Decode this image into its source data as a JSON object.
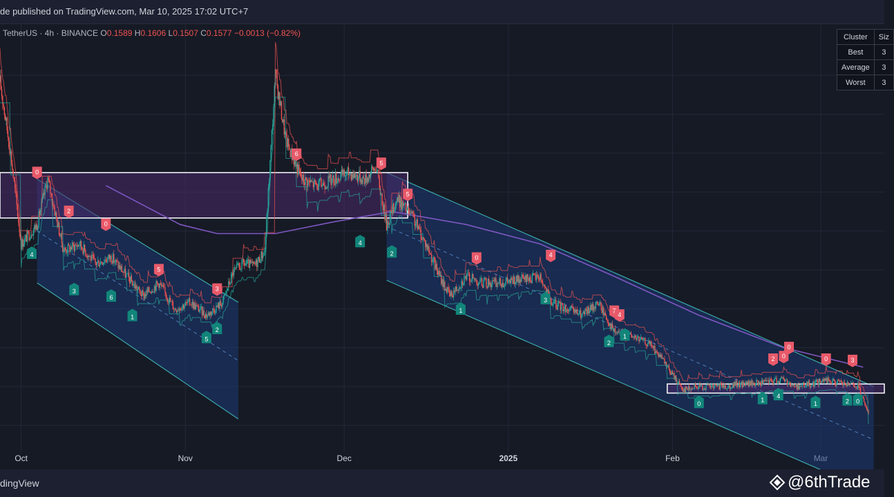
{
  "header": {
    "published_text": "de published on TradingView.com, Mar 10, 2025 17:02 UTC+7"
  },
  "legend": {
    "symbol": "TetherUS · 4h · BINANCE",
    "o_label": "O",
    "o_value": "0.1589",
    "h_label": "H",
    "h_value": "0.1606",
    "l_label": "L",
    "l_value": "0.1507",
    "c_label": "C",
    "c_value": "0.1577",
    "change": "−0.0013 (−0.82%)"
  },
  "cluster_table": {
    "headers": [
      "Cluster",
      "Siz"
    ],
    "rows": [
      {
        "name": "Best",
        "value": "3"
      },
      {
        "name": "Average",
        "value": "3"
      },
      {
        "name": "Worst",
        "value": "3"
      }
    ]
  },
  "footer": {
    "brand": "dingView",
    "watermark": "@6thTrade",
    "watermark_icon": "diamond-icon"
  },
  "colors": {
    "background": "#161a25",
    "grid": "#232838",
    "bull": "#26a69a",
    "bear": "#ef5350",
    "channel": "#1e3a75",
    "ma": "#7e57c2",
    "zone": "#4a2a6a",
    "bull_label": "#12857a",
    "bear_label": "#e85a6a"
  },
  "chart_data": {
    "type": "candlestick",
    "x_tick_labels": [
      "Oct",
      "Nov",
      "Dec",
      "2025",
      "Feb",
      "Mar"
    ],
    "x_tick_dates": [
      "2024-10-01",
      "2024-11-01",
      "2024-12-01",
      "2025-01-01",
      "2025-02-01",
      "2025-03-01"
    ],
    "x_range": [
      "2024-09-27",
      "2025-03-13"
    ],
    "y_range": [
      0.13,
      0.46
    ],
    "price_path": [
      [
        "2024-09-27",
        0.415
      ],
      [
        "2024-09-29",
        0.36
      ],
      [
        "2024-10-01",
        0.29
      ],
      [
        "2024-10-04",
        0.305
      ],
      [
        "2024-10-06",
        0.34
      ],
      [
        "2024-10-09",
        0.285
      ],
      [
        "2024-10-12",
        0.29
      ],
      [
        "2024-10-15",
        0.275
      ],
      [
        "2024-10-18",
        0.28
      ],
      [
        "2024-10-21",
        0.265
      ],
      [
        "2024-10-24",
        0.25
      ],
      [
        "2024-10-27",
        0.26
      ],
      [
        "2024-10-30",
        0.24
      ],
      [
        "2024-11-02",
        0.245
      ],
      [
        "2024-11-05",
        0.235
      ],
      [
        "2024-11-08",
        0.245
      ],
      [
        "2024-11-10",
        0.268
      ],
      [
        "2024-11-12",
        0.275
      ],
      [
        "2024-11-14",
        0.273
      ],
      [
        "2024-11-16",
        0.285
      ],
      [
        "2024-11-18",
        0.42
      ],
      [
        "2024-11-20",
        0.37
      ],
      [
        "2024-11-23",
        0.34
      ],
      [
        "2024-11-26",
        0.335
      ],
      [
        "2024-11-29",
        0.34
      ],
      [
        "2024-12-02",
        0.345
      ],
      [
        "2024-12-05",
        0.34
      ],
      [
        "2024-12-07",
        0.35
      ],
      [
        "2024-12-09",
        0.305
      ],
      [
        "2024-12-11",
        0.325
      ],
      [
        "2024-12-14",
        0.31
      ],
      [
        "2024-12-17",
        0.285
      ],
      [
        "2024-12-19",
        0.265
      ],
      [
        "2024-12-21",
        0.25
      ],
      [
        "2024-12-24",
        0.265
      ],
      [
        "2024-12-27",
        0.26
      ],
      [
        "2024-12-30",
        0.26
      ],
      [
        "2025-01-03",
        0.262
      ],
      [
        "2025-01-07",
        0.265
      ],
      [
        "2025-01-09",
        0.245
      ],
      [
        "2025-01-12",
        0.24
      ],
      [
        "2025-01-15",
        0.235
      ],
      [
        "2025-01-18",
        0.245
      ],
      [
        "2025-01-21",
        0.222
      ],
      [
        "2025-01-25",
        0.218
      ],
      [
        "2025-01-28",
        0.212
      ],
      [
        "2025-01-31",
        0.195
      ],
      [
        "2025-02-03",
        0.178
      ],
      [
        "2025-02-06",
        0.18
      ],
      [
        "2025-02-10",
        0.18
      ],
      [
        "2025-02-14",
        0.182
      ],
      [
        "2025-02-18",
        0.183
      ],
      [
        "2025-02-22",
        0.186
      ],
      [
        "2025-02-24",
        0.18
      ],
      [
        "2025-02-27",
        0.182
      ],
      [
        "2025-03-02",
        0.185
      ],
      [
        "2025-03-05",
        0.182
      ],
      [
        "2025-03-08",
        0.18
      ],
      [
        "2025-03-10",
        0.158
      ]
    ],
    "moving_average": [
      [
        "2024-10-17",
        0.335
      ],
      [
        "2024-10-31",
        0.305
      ],
      [
        "2024-11-07",
        0.298
      ],
      [
        "2024-11-18",
        0.298
      ],
      [
        "2024-11-29",
        0.307
      ],
      [
        "2024-12-10",
        0.315
      ],
      [
        "2024-12-24",
        0.305
      ],
      [
        "2025-01-07",
        0.29
      ],
      [
        "2025-01-21",
        0.265
      ],
      [
        "2025-02-06",
        0.235
      ],
      [
        "2025-02-22",
        0.21
      ],
      [
        "2025-03-09",
        0.195
      ]
    ],
    "channels": [
      {
        "upper_start": [
          "2024-10-04",
          0.34
        ],
        "upper_end": [
          "2024-11-11",
          0.245
        ],
        "lower_start": [
          "2024-10-04",
          0.26
        ],
        "lower_end": [
          "2024-11-11",
          0.155
        ]
      },
      {
        "upper_start": [
          "2024-12-09",
          0.345
        ],
        "upper_end": [
          "2025-03-11",
          0.18
        ],
        "lower_start": [
          "2024-12-09",
          0.262
        ],
        "lower_end": [
          "2025-03-11",
          0.098
        ]
      }
    ],
    "zones": [
      {
        "from": "2024-09-27",
        "to": "2024-12-13",
        "top": 0.345,
        "bottom": 0.31
      },
      {
        "from": "2025-01-31",
        "to": "2025-03-13",
        "top": 0.182,
        "bottom": 0.175
      }
    ],
    "signals": [
      {
        "date": "2024-10-04",
        "price": 0.34,
        "label": "0",
        "type": "sell"
      },
      {
        "date": "2024-10-10",
        "price": 0.31,
        "label": "2",
        "type": "sell"
      },
      {
        "date": "2024-10-17",
        "price": 0.3,
        "label": "0",
        "type": "sell"
      },
      {
        "date": "2024-10-27",
        "price": 0.265,
        "label": "5",
        "type": "sell"
      },
      {
        "date": "2024-11-07",
        "price": 0.25,
        "label": "3",
        "type": "sell"
      },
      {
        "date": "2024-11-22",
        "price": 0.354,
        "label": "6",
        "type": "sell"
      },
      {
        "date": "2024-12-08",
        "price": 0.347,
        "label": "5",
        "type": "sell"
      },
      {
        "date": "2024-12-13",
        "price": 0.323,
        "label": "5",
        "type": "sell"
      },
      {
        "date": "2024-12-26",
        "price": 0.274,
        "label": "0",
        "type": "sell"
      },
      {
        "date": "2025-01-09",
        "price": 0.276,
        "label": "4",
        "type": "sell"
      },
      {
        "date": "2025-01-21",
        "price": 0.233,
        "label": "7",
        "type": "sell"
      },
      {
        "date": "2025-01-22",
        "price": 0.23,
        "label": "4",
        "type": "sell"
      },
      {
        "date": "2025-02-20",
        "price": 0.196,
        "label": "2",
        "type": "sell"
      },
      {
        "date": "2025-02-22",
        "price": 0.198,
        "label": "0",
        "type": "sell"
      },
      {
        "date": "2025-02-23",
        "price": 0.205,
        "label": "0",
        "type": "sell"
      },
      {
        "date": "2025-03-02",
        "price": 0.196,
        "label": "0",
        "type": "sell"
      },
      {
        "date": "2025-03-07",
        "price": 0.195,
        "label": "3",
        "type": "sell"
      },
      {
        "date": "2024-10-03",
        "price": 0.288,
        "label": "4",
        "type": "buy"
      },
      {
        "date": "2024-10-11",
        "price": 0.26,
        "label": "3",
        "type": "buy"
      },
      {
        "date": "2024-10-18",
        "price": 0.255,
        "label": "6",
        "type": "buy"
      },
      {
        "date": "2024-10-22",
        "price": 0.24,
        "label": "1",
        "type": "buy"
      },
      {
        "date": "2024-11-05",
        "price": 0.223,
        "label": "5",
        "type": "buy"
      },
      {
        "date": "2024-11-07",
        "price": 0.23,
        "label": "2",
        "type": "buy"
      },
      {
        "date": "2024-12-04",
        "price": 0.297,
        "label": "4",
        "type": "buy"
      },
      {
        "date": "2024-12-10",
        "price": 0.289,
        "label": "2",
        "type": "buy"
      },
      {
        "date": "2024-12-23",
        "price": 0.245,
        "label": "1",
        "type": "buy"
      },
      {
        "date": "2025-01-08",
        "price": 0.253,
        "label": "3",
        "type": "buy"
      },
      {
        "date": "2025-01-20",
        "price": 0.22,
        "label": "2",
        "type": "buy"
      },
      {
        "date": "2025-01-23",
        "price": 0.225,
        "label": "1",
        "type": "buy"
      },
      {
        "date": "2025-02-06",
        "price": 0.173,
        "label": "0",
        "type": "buy"
      },
      {
        "date": "2025-02-18",
        "price": 0.176,
        "label": "1",
        "type": "buy"
      },
      {
        "date": "2025-02-21",
        "price": 0.179,
        "label": "4",
        "type": "buy"
      },
      {
        "date": "2025-02-28",
        "price": 0.173,
        "label": "1",
        "type": "buy"
      },
      {
        "date": "2025-03-06",
        "price": 0.175,
        "label": "2",
        "type": "buy"
      },
      {
        "date": "2025-03-08",
        "price": 0.175,
        "label": "0",
        "type": "buy"
      }
    ]
  }
}
